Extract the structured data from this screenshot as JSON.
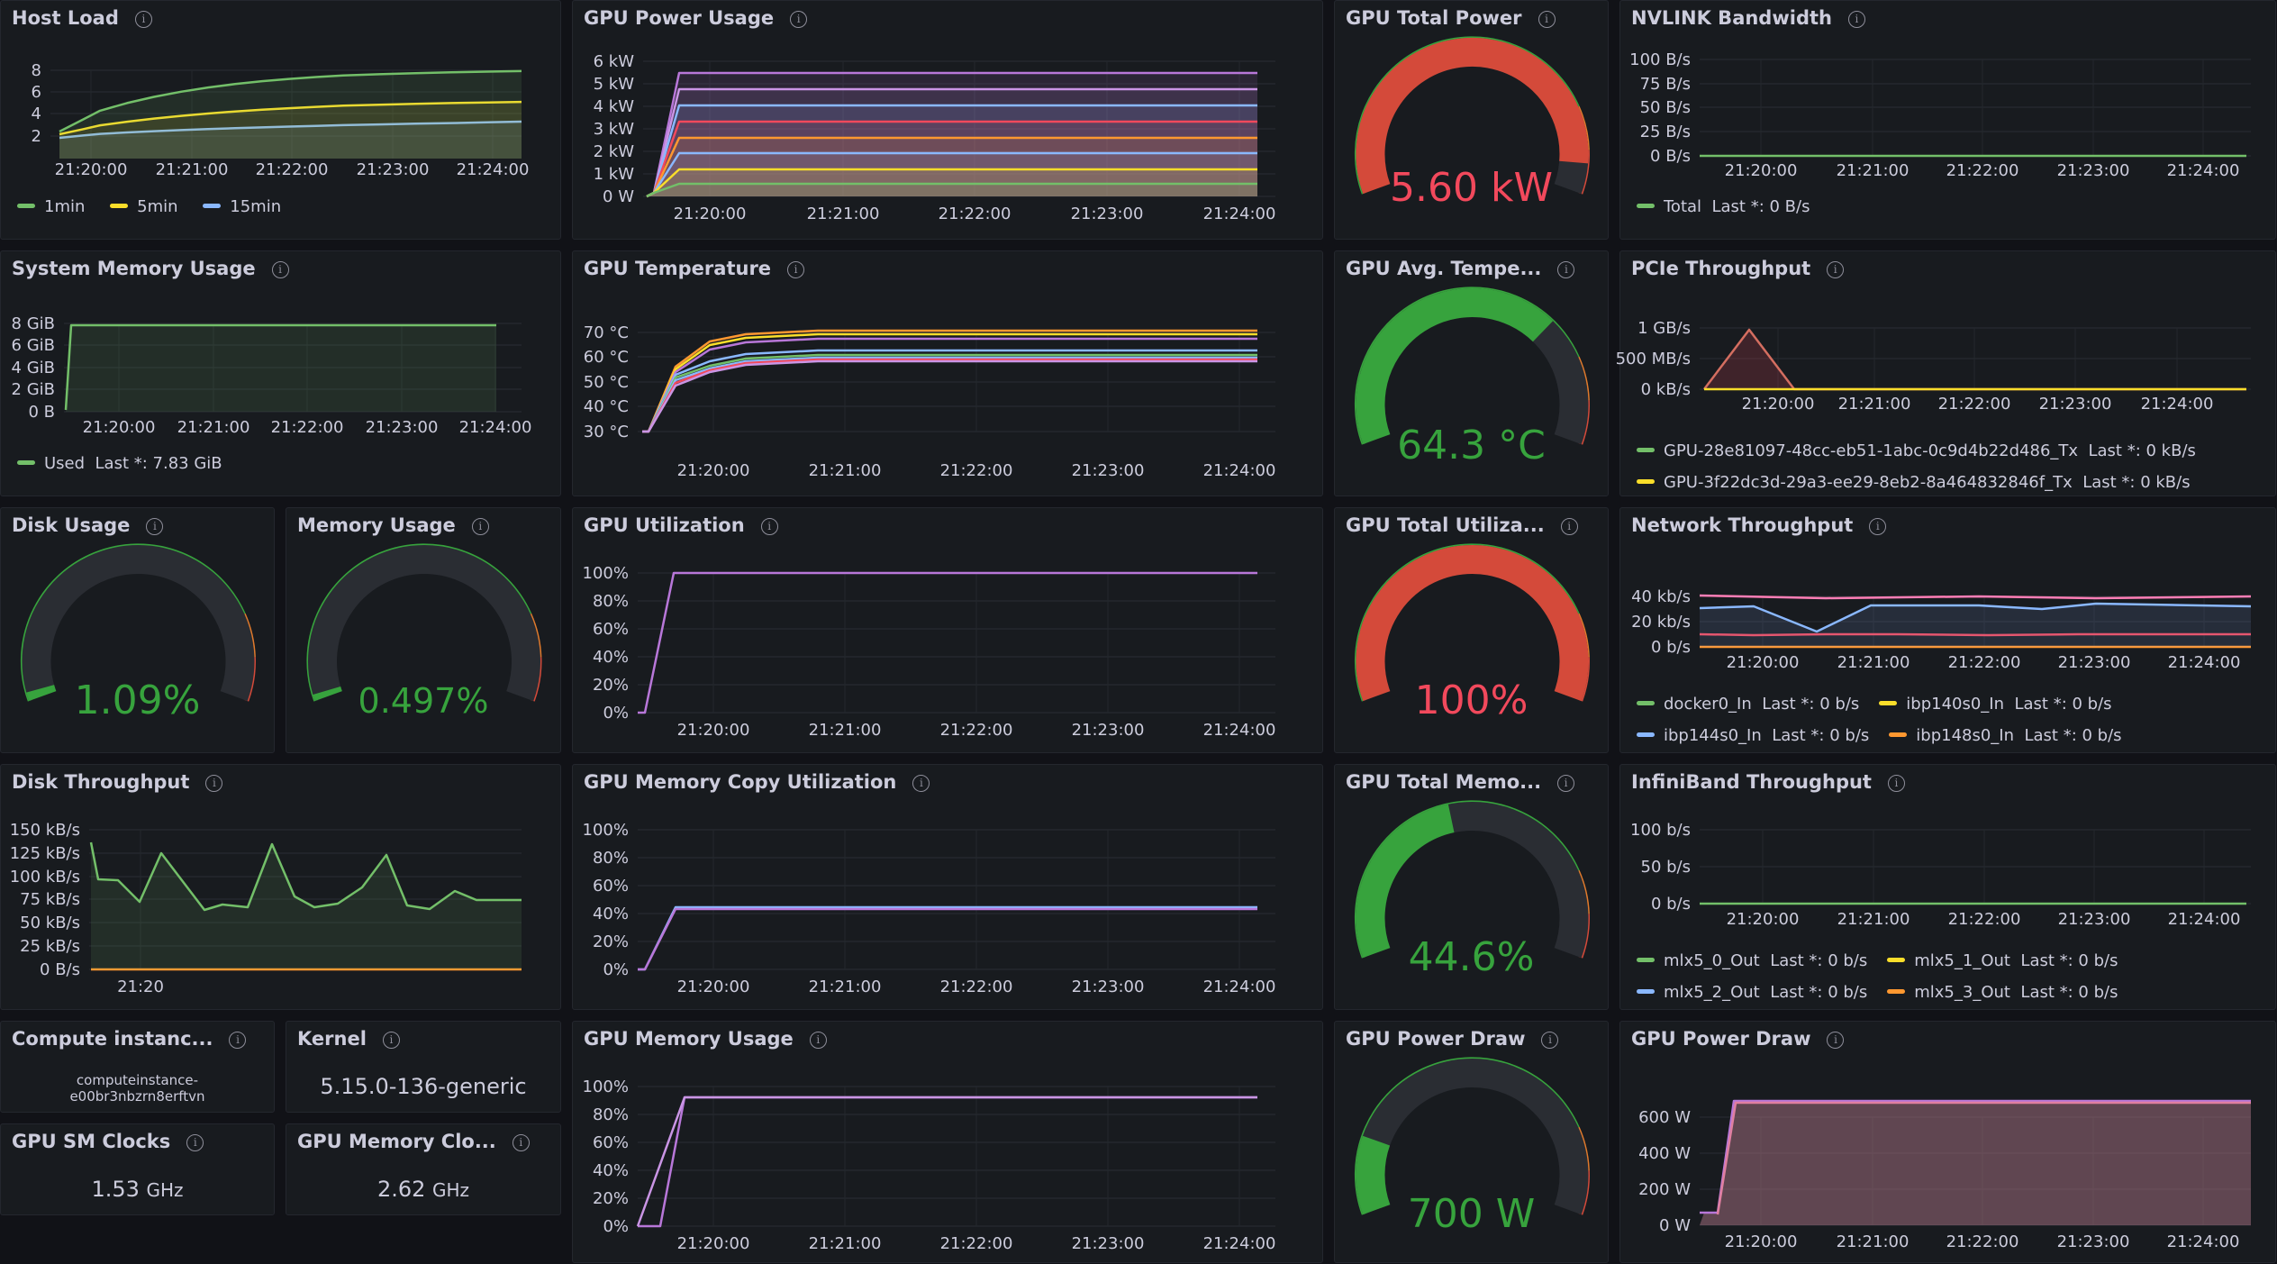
{
  "colors": {
    "green": "#73bf69",
    "yellow": "#fade2a",
    "blue": "#8ab8ff",
    "orange": "#ff9830",
    "red": "#f2495c",
    "purple": "#b877d9",
    "gaugeGreen": "#37a33d",
    "gaugeRed": "#d44a3a",
    "gaugeOrange": "#e07a2c",
    "track": "#2a2d33"
  },
  "host_load": {
    "title": "Host Load",
    "yticks": [
      "8",
      "6",
      "4",
      "2"
    ],
    "xticks": [
      "21:20:00",
      "21:21:00",
      "21:22:00",
      "21:23:00",
      "21:24:00"
    ],
    "legend": [
      "1min",
      "5min",
      "15min"
    ]
  },
  "gpu_power_usage": {
    "title": "GPU Power Usage",
    "yticks": [
      "6 kW",
      "5 kW",
      "4 kW",
      "3 kW",
      "2 kW",
      "1 kW",
      "0 W"
    ],
    "xticks": [
      "21:20:00",
      "21:21:00",
      "21:22:00",
      "21:23:00",
      "21:24:00"
    ]
  },
  "gpu_total_power": {
    "title": "GPU Total Power",
    "value": "5.60 kW",
    "fraction": 0.93
  },
  "nvlink": {
    "title": "NVLINK Bandwidth",
    "yticks": [
      "100 B/s",
      "75 B/s",
      "50 B/s",
      "25 B/s",
      "0 B/s"
    ],
    "xticks": [
      "21:20:00",
      "21:21:00",
      "21:22:00",
      "21:23:00",
      "21:24:00"
    ],
    "legend": [
      {
        "name": "Total",
        "last": "Last *: 0 B/s"
      }
    ]
  },
  "sys_mem": {
    "title": "System Memory Usage",
    "yticks": [
      "8 GiB",
      "6 GiB",
      "4 GiB",
      "2 GiB",
      "0 B"
    ],
    "xticks": [
      "21:20:00",
      "21:21:00",
      "21:22:00",
      "21:23:00",
      "21:24:00"
    ],
    "legend": [
      {
        "name": "Used",
        "last": "Last *: 7.83 GiB"
      }
    ]
  },
  "gpu_temp": {
    "title": "GPU Temperature",
    "yticks": [
      "70 °C",
      "60 °C",
      "50 °C",
      "40 °C",
      "30 °C"
    ],
    "xticks": [
      "21:20:00",
      "21:21:00",
      "21:22:00",
      "21:23:00",
      "21:24:00"
    ]
  },
  "gpu_avg_temp": {
    "title": "GPU Avg. Tempe...",
    "value": "64.3 °C",
    "fraction": 0.7
  },
  "pcie": {
    "title": "PCIe Throughput",
    "yticks": [
      "1 GB/s",
      "500 MB/s",
      "0 kB/s"
    ],
    "xticks": [
      "21:20:00",
      "21:21:00",
      "21:22:00",
      "21:23:00",
      "21:24:00"
    ],
    "legend": [
      {
        "name": "GPU-28e81097-48cc-eb51-1abc-0c9d4b22d486_Tx",
        "last": "Last *: 0 kB/s"
      },
      {
        "name": "GPU-3f22dc3d-29a3-ee29-8eb2-8a464832846f_Tx",
        "last": "Last *: 0 kB/s"
      }
    ]
  },
  "disk_usage": {
    "title": "Disk Usage",
    "value": "1.09%",
    "fraction": 0.02
  },
  "memory_usage": {
    "title": "Memory Usage",
    "value": "0.497%",
    "fraction": 0.01
  },
  "gpu_util": {
    "title": "GPU Utilization",
    "yticks": [
      "100%",
      "80%",
      "60%",
      "40%",
      "20%",
      "0%"
    ],
    "xticks": [
      "21:20:00",
      "21:21:00",
      "21:22:00",
      "21:23:00",
      "21:24:00"
    ]
  },
  "gpu_total_util": {
    "title": "GPU Total Utiliza...",
    "value": "100%",
    "fraction": 1.0
  },
  "network": {
    "title": "Network Throughput",
    "yticks": [
      "40 kb/s",
      "20 kb/s",
      "0 b/s"
    ],
    "xticks": [
      "21:20:00",
      "21:21:00",
      "21:22:00",
      "21:23:00",
      "21:24:00"
    ],
    "legend": [
      {
        "name": "docker0_In",
        "last": "Last *: 0 b/s"
      },
      {
        "name": "ibp140s0_In",
        "last": "Last *: 0 b/s"
      },
      {
        "name": "ibp144s0_In",
        "last": "Last *: 0 b/s"
      },
      {
        "name": "ibp148s0_In",
        "last": "Last *: 0 b/s"
      }
    ]
  },
  "disk_tp": {
    "title": "Disk Throughput",
    "yticks": [
      "150 kB/s",
      "125 kB/s",
      "100 kB/s",
      "75 kB/s",
      "50 kB/s",
      "25 kB/s",
      "0 B/s"
    ],
    "xticks": [
      "21:20"
    ]
  },
  "gpu_mem_copy": {
    "title": "GPU Memory Copy Utilization",
    "yticks": [
      "100%",
      "80%",
      "60%",
      "40%",
      "20%",
      "0%"
    ],
    "xticks": [
      "21:20:00",
      "21:21:00",
      "21:22:00",
      "21:23:00",
      "21:24:00"
    ]
  },
  "gpu_total_mem": {
    "title": "GPU Total Memo...",
    "value": "44.6%",
    "fraction": 0.446
  },
  "infiniband": {
    "title": "InfiniBand Throughput",
    "yticks": [
      "100 b/s",
      "50 b/s",
      "0 b/s"
    ],
    "xticks": [
      "21:20:00",
      "21:21:00",
      "21:22:00",
      "21:23:00",
      "21:24:00"
    ],
    "legend": [
      {
        "name": "mlx5_0_Out",
        "last": "Last *: 0 b/s"
      },
      {
        "name": "mlx5_1_Out",
        "last": "Last *: 0 b/s"
      },
      {
        "name": "mlx5_2_Out",
        "last": "Last *: 0 b/s"
      },
      {
        "name": "mlx5_3_Out",
        "last": "Last *: 0 b/s"
      }
    ]
  },
  "compute_instance": {
    "title": "Compute instanc...",
    "value_line1": "computeinstance-",
    "value_line2": "e00br3nbzrn8erftvn"
  },
  "kernel": {
    "title": "Kernel",
    "value": "5.15.0-136-generic"
  },
  "gpu_mem_usage": {
    "title": "GPU Memory Usage",
    "yticks": [
      "100%",
      "80%",
      "60%",
      "40%",
      "20%",
      "0%"
    ],
    "xticks": [
      "21:20:00",
      "21:21:00",
      "21:22:00",
      "21:23:00",
      "21:24:00"
    ]
  },
  "gpu_power_draw_gauge": {
    "title": "GPU Power Draw",
    "value": "700 W",
    "fraction": 0.18
  },
  "gpu_power_draw_chart": {
    "title": "GPU Power Draw",
    "yticks": [
      "600 W",
      "400 W",
      "200 W",
      "0 W"
    ],
    "xticks": [
      "21:20:00",
      "21:21:00",
      "21:22:00",
      "21:23:00",
      "21:24:00"
    ]
  },
  "gpu_sm_clocks": {
    "title": "GPU SM Clocks",
    "value": "1.53",
    "unit": "GHz"
  },
  "gpu_mem_clocks": {
    "title": "GPU Memory Clo...",
    "value": "2.62",
    "unit": "GHz"
  }
}
